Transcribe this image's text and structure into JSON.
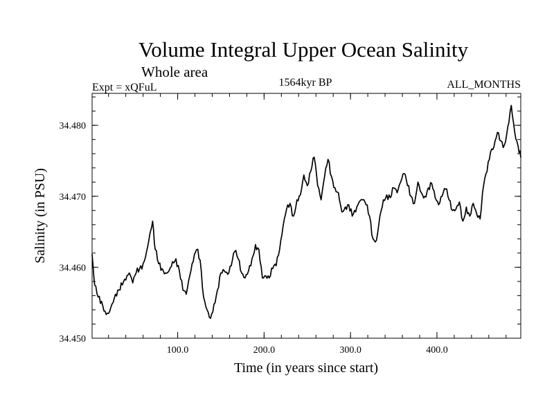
{
  "colors": {
    "line": "#000000",
    "axis": "#000000",
    "background": "#ffffff"
  },
  "chart_data": {
    "type": "line",
    "title": "Volume Integral Upper Ocean Salinity",
    "subtitle": "Whole area",
    "annotations": {
      "left": "Expt = xQFuL",
      "center": "1564kyr BP",
      "right": "ALL_MONTHS"
    },
    "xlabel": "Time (in years since start)",
    "ylabel": "Salinity (in PSU)",
    "xlim": [
      1,
      497
    ],
    "ylim": [
      34.45,
      34.4845
    ],
    "grid": false,
    "x_ticks": [
      {
        "value": 100,
        "label": "100.0"
      },
      {
        "value": 200,
        "label": "200.0"
      },
      {
        "value": 300,
        "label": "300.0"
      },
      {
        "value": 400,
        "label": "400.0"
      }
    ],
    "y_ticks": [
      {
        "value": 34.45,
        "label": "34.450"
      },
      {
        "value": 34.46,
        "label": "34.460"
      },
      {
        "value": 34.47,
        "label": "34.470"
      },
      {
        "value": 34.48,
        "label": "34.480"
      }
    ],
    "x_minor_step": 20,
    "y_minor_step": 0.002,
    "series": [
      {
        "name": "Salinity",
        "x": [
          1,
          4,
          8,
          12,
          16,
          20,
          24,
          28,
          32,
          36,
          40,
          44,
          48,
          52,
          56,
          60,
          64,
          68,
          71,
          74,
          78,
          82,
          86,
          90,
          94,
          98,
          102,
          106,
          110,
          114,
          118,
          122,
          126,
          130,
          134,
          138,
          142,
          146,
          150,
          154,
          158,
          162,
          166,
          170,
          174,
          178,
          182,
          186,
          190,
          194,
          198,
          202,
          206,
          210,
          214,
          218,
          222,
          226,
          230,
          234,
          238,
          242,
          246,
          250,
          254,
          258,
          262,
          266,
          270,
          274,
          278,
          282,
          286,
          290,
          294,
          298,
          302,
          306,
          310,
          314,
          318,
          322,
          326,
          330,
          334,
          338,
          342,
          346,
          350,
          354,
          358,
          362,
          366,
          370,
          374,
          378,
          382,
          386,
          390,
          394,
          398,
          402,
          406,
          410,
          414,
          418,
          422,
          426,
          430,
          434,
          438,
          442,
          446,
          450,
          454,
          458,
          462,
          466,
          470,
          474,
          478,
          482,
          486,
          490,
          494,
          497
        ],
        "values": [
          34.4618,
          34.4575,
          34.4558,
          34.4552,
          34.4538,
          34.4535,
          34.4548,
          34.4562,
          34.4568,
          34.4575,
          34.4582,
          34.4592,
          34.4578,
          34.4592,
          34.4598,
          34.4605,
          34.4622,
          34.4648,
          34.4665,
          34.4625,
          34.4605,
          34.4598,
          34.4592,
          34.4595,
          34.4608,
          34.4612,
          34.4595,
          34.4568,
          34.4562,
          34.4588,
          34.4608,
          34.4625,
          34.461,
          34.4558,
          34.454,
          34.4528,
          34.4548,
          34.4568,
          34.4592,
          34.4595,
          34.459,
          34.4602,
          34.4622,
          34.4612,
          34.4592,
          34.4585,
          34.4595,
          34.4612,
          34.4632,
          34.4625,
          34.4585,
          34.4588,
          34.4585,
          34.4598,
          34.4602,
          34.4625,
          34.4658,
          34.4682,
          34.469,
          34.4672,
          34.4695,
          34.4702,
          34.473,
          34.4715,
          34.4735,
          34.4755,
          34.4715,
          34.4695,
          34.4728,
          34.4752,
          34.4728,
          34.4712,
          34.4705,
          34.4678,
          34.4685,
          34.4688,
          34.4672,
          34.4678,
          34.4692,
          34.4695,
          34.4688,
          34.4672,
          34.464,
          34.4638,
          34.4672,
          34.4695,
          34.4702,
          34.4698,
          34.4712,
          34.4705,
          34.472,
          34.4732,
          34.4715,
          34.47,
          34.469,
          34.472,
          34.4705,
          34.47,
          34.4712,
          34.4718,
          34.4698,
          34.4688,
          34.47,
          34.471,
          34.4695,
          34.468,
          34.4682,
          34.4692,
          34.4665,
          34.4685,
          34.4672,
          34.469,
          34.4675,
          34.4668,
          34.4715,
          34.4735,
          34.4762,
          34.477,
          34.479,
          34.4778,
          34.4772,
          34.4798,
          34.4828,
          34.479,
          34.477,
          34.4755
        ]
      }
    ]
  }
}
